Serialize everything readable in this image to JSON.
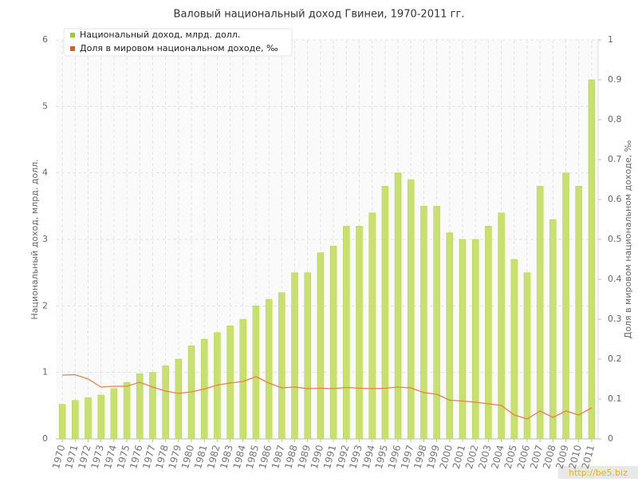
{
  "chart_data": {
    "type": "bar-line",
    "title": "Валовый национальный доход Гвинеи, 1970-2011 гг.",
    "y_label": "Национальный доход, млрд. долл.",
    "y2_label": "Доля в мировом национальном доходе, ‰",
    "watermark": "http://be5.biz",
    "categories": [
      "1970",
      "1971",
      "1972",
      "1973",
      "1974",
      "1975",
      "1976",
      "1977",
      "1978",
      "1979",
      "1980",
      "1981",
      "1982",
      "1983",
      "1984",
      "1985",
      "1986",
      "1987",
      "1988",
      "1989",
      "1990",
      "1991",
      "1992",
      "1993",
      "1994",
      "1995",
      "1996",
      "1997",
      "1998",
      "1999",
      "2000",
      "2001",
      "2002",
      "2003",
      "2004",
      "2005",
      "2006",
      "2007",
      "2008",
      "2009",
      "2010",
      "2011"
    ],
    "series": [
      {
        "name": "Национальный доход, млрд. долл.",
        "color": "#c8e06e",
        "legend_color": "#9acd32",
        "values": [
          0.52,
          0.58,
          0.62,
          0.66,
          0.76,
          0.85,
          0.98,
          1.0,
          1.1,
          1.2,
          1.4,
          1.5,
          1.6,
          1.7,
          1.8,
          2.0,
          2.1,
          2.2,
          2.5,
          2.5,
          2.8,
          2.9,
          3.2,
          3.2,
          3.4,
          3.8,
          4.0,
          3.9,
          3.5,
          3.5,
          3.1,
          3.0,
          3.0,
          3.2,
          3.4,
          2.7,
          2.5,
          3.8,
          3.3,
          4.0,
          3.8,
          5.4
        ]
      },
      {
        "name": "Доля в мировом национальном доходе, ‰",
        "color": "#e8804a",
        "legend_color": "#e05a28",
        "axis": "y2",
        "values": [
          0.16,
          0.161,
          0.15,
          0.13,
          0.132,
          0.132,
          0.142,
          0.13,
          0.12,
          0.114,
          0.118,
          0.125,
          0.135,
          0.14,
          0.144,
          0.156,
          0.14,
          0.128,
          0.13,
          0.126,
          0.127,
          0.126,
          0.129,
          0.127,
          0.126,
          0.127,
          0.13,
          0.128,
          0.116,
          0.112,
          0.097,
          0.095,
          0.092,
          0.088,
          0.084,
          0.06,
          0.05,
          0.07,
          0.054,
          0.07,
          0.06,
          0.078
        ]
      }
    ],
    "ylim": [
      0,
      6
    ],
    "yticks": [
      0,
      1,
      2,
      3,
      4,
      5,
      6
    ],
    "y2lim": [
      0,
      1
    ],
    "y2ticks": [
      0,
      0.1,
      0.2,
      0.3,
      0.4,
      0.5,
      0.6,
      0.7,
      0.8,
      0.9,
      1
    ],
    "grid": true,
    "legend": "top-left"
  }
}
